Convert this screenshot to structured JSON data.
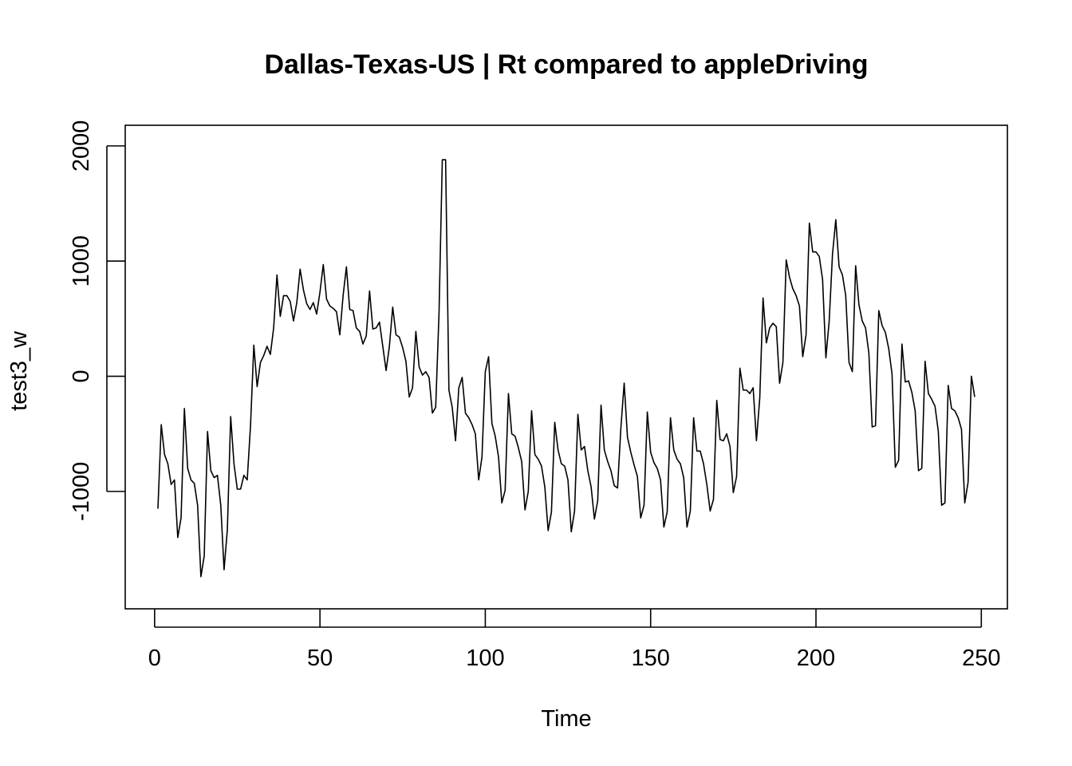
{
  "chart_data": {
    "type": "line",
    "title": "Dallas-Texas-US | Rt compared to appleDriving",
    "xlabel": "Time",
    "ylabel": "test3_w",
    "xlim": [
      1,
      248
    ],
    "ylim": [
      -1860,
      2020
    ],
    "xticks": [
      0,
      50,
      100,
      150,
      200,
      250
    ],
    "yticks": [
      -1000,
      0,
      1000,
      2000
    ],
    "xtick_labels": [
      "0",
      "50",
      "100",
      "150",
      "200",
      "250"
    ],
    "ytick_labels": [
      "-1000",
      "0",
      "1000",
      "2000"
    ],
    "grid": false,
    "series": [
      {
        "x_start": 1,
        "x_step": 1,
        "values": [
          -1150,
          -420,
          -680,
          -760,
          -940,
          -900,
          -1400,
          -1230,
          -280,
          -800,
          -900,
          -930,
          -1120,
          -1740,
          -1560,
          -480,
          -820,
          -880,
          -860,
          -1120,
          -1680,
          -1330,
          -350,
          -760,
          -980,
          -980,
          -860,
          -900,
          -430,
          270,
          -90,
          120,
          180,
          260,
          190,
          420,
          880,
          520,
          700,
          700,
          650,
          480,
          640,
          930,
          750,
          630,
          580,
          640,
          540,
          730,
          970,
          670,
          610,
          590,
          560,
          360,
          700,
          950,
          580,
          570,
          420,
          390,
          280,
          350,
          740,
          410,
          420,
          470,
          260,
          50,
          260,
          600,
          360,
          340,
          250,
          130,
          -180,
          -100,
          390,
          80,
          10,
          40,
          -10,
          -320,
          -270,
          540,
          1880,
          1880,
          -120,
          -270,
          -560,
          -100,
          -10,
          -320,
          -360,
          -420,
          -500,
          -900,
          -700,
          40,
          170,
          -410,
          -520,
          -700,
          -1100,
          -990,
          -150,
          -500,
          -520,
          -620,
          -740,
          -1160,
          -1000,
          -300,
          -680,
          -720,
          -780,
          -960,
          -1340,
          -1180,
          -400,
          -640,
          -760,
          -780,
          -900,
          -1350,
          -1170,
          -330,
          -640,
          -610,
          -820,
          -960,
          -1240,
          -1080,
          -250,
          -640,
          -740,
          -820,
          -950,
          -970,
          -450,
          -60,
          -530,
          -660,
          -770,
          -870,
          -1230,
          -1120,
          -310,
          -660,
          -750,
          -800,
          -900,
          -1310,
          -1180,
          -360,
          -640,
          -720,
          -760,
          -880,
          -1310,
          -1170,
          -360,
          -650,
          -650,
          -760,
          -940,
          -1170,
          -1070,
          -210,
          -550,
          -560,
          -500,
          -610,
          -1010,
          -870,
          70,
          -120,
          -120,
          -150,
          -100,
          -560,
          -190,
          680,
          290,
          420,
          460,
          430,
          -60,
          120,
          1010,
          860,
          760,
          700,
          610,
          170,
          360,
          1330,
          1080,
          1080,
          1040,
          840,
          160,
          480,
          1060,
          1360,
          950,
          880,
          700,
          120,
          40,
          960,
          620,
          480,
          420,
          200,
          -440,
          -430,
          570,
          440,
          380,
          240,
          20,
          -790,
          -730,
          280,
          -50,
          -40,
          -140,
          -300,
          -820,
          -800,
          130,
          -150,
          -200,
          -260,
          -480,
          -1120,
          -1100,
          -80,
          -280,
          -300,
          -360,
          -460,
          -1100,
          -920,
          0,
          -180
        ]
      }
    ]
  }
}
